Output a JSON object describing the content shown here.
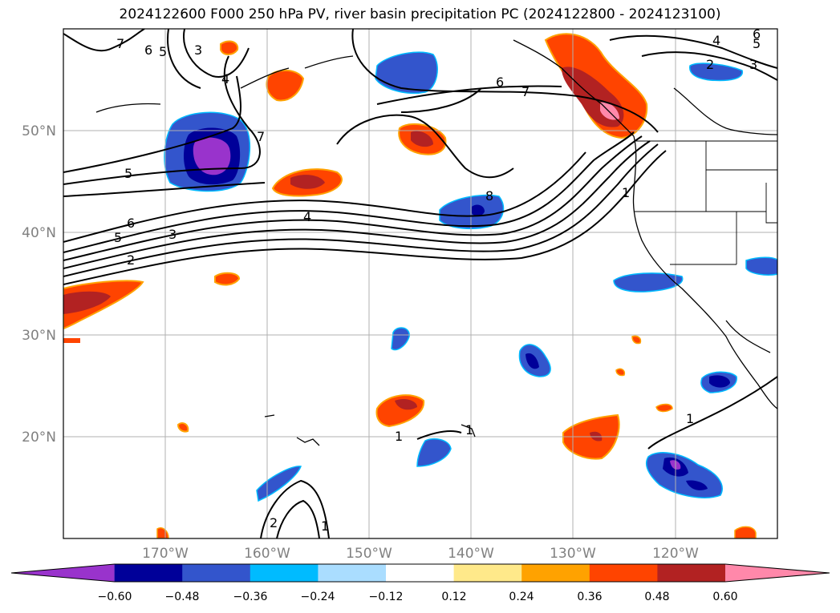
{
  "title": "2024122600 F000 250 hPa PV, river basin precipitation PC (2024122800 - 2024123100)",
  "lat_ticks": [
    "50°N",
    "40°N",
    "30°N",
    "20°N"
  ],
  "lon_ticks": [
    "170°W",
    "160°W",
    "150°W",
    "140°W",
    "130°W",
    "120°W"
  ],
  "colorbar": {
    "labels": [
      "−0.60",
      "−0.48",
      "−0.36",
      "−0.24",
      "−0.12",
      "0.12",
      "0.24",
      "0.36",
      "0.48",
      "0.60"
    ],
    "colors": [
      "#9933cc",
      "#000099",
      "#3355cc",
      "#00bbff",
      "#aaddff",
      "#ffffff",
      "#ffe98a",
      "#ffa200",
      "#ff4400",
      "#b22222",
      "#ff88aa"
    ]
  },
  "contour_labels": [
    "7",
    "6",
    "5",
    "3",
    "4",
    "7",
    "5",
    "6",
    "5",
    "3",
    "2",
    "4",
    "8",
    "6",
    "7",
    "1",
    "4",
    "6",
    "5",
    "2",
    "3",
    "1",
    "1",
    "1",
    "2",
    "1"
  ],
  "map": {
    "region": "North Pacific and western North America",
    "lon_range": [
      -180,
      -110
    ],
    "lat_range": [
      10,
      60
    ],
    "field_contours": "250 hPa PV",
    "field_shaded": "river basin precipitation PC"
  }
}
